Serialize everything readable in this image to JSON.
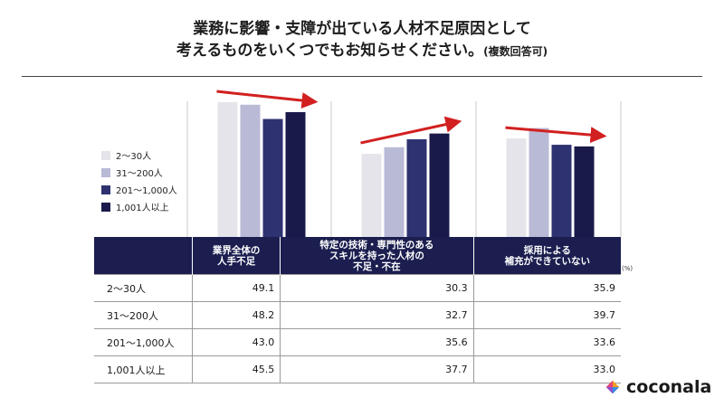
{
  "title_line1": "業務に影響・支障が出ている人材不足原因として",
  "title_line2": "考えるものをいくつでもお知らせください。",
  "title_note": "(複数回答可)",
  "unit_label": "(%)",
  "brand": "coconala",
  "colors": {
    "series": [
      "#e4e4ea",
      "#b9bad6",
      "#2e3270",
      "#1a1a4a"
    ],
    "header_bg": "#1b1e4f",
    "arrow": "#d22020"
  },
  "chart_data": {
    "type": "bar",
    "categories": [
      "業界全体の\n人手不足",
      "特定の技術・専門性のある\nスキルを持った人材の\n不足・不在",
      "採用による\n補充ができていない"
    ],
    "category_label_lines": [
      [
        "業界全体の",
        "人手不足"
      ],
      [
        "特定の技術・専門性のある",
        "スキルを持った人材の",
        "不足・不在"
      ],
      [
        "採用による",
        "補充ができていない"
      ]
    ],
    "series": [
      {
        "name": "2〜30人",
        "values": [
          49.1,
          30.3,
          35.9
        ]
      },
      {
        "name": "31〜200人",
        "values": [
          48.2,
          32.7,
          39.7
        ]
      },
      {
        "name": "201〜1,000人",
        "values": [
          43.0,
          35.6,
          33.6
        ]
      },
      {
        "name": "1,001人以上",
        "values": [
          45.5,
          37.7,
          33.0
        ]
      }
    ],
    "trend": [
      "down",
      "up",
      "down"
    ],
    "ylim": [
      0,
      50
    ]
  }
}
